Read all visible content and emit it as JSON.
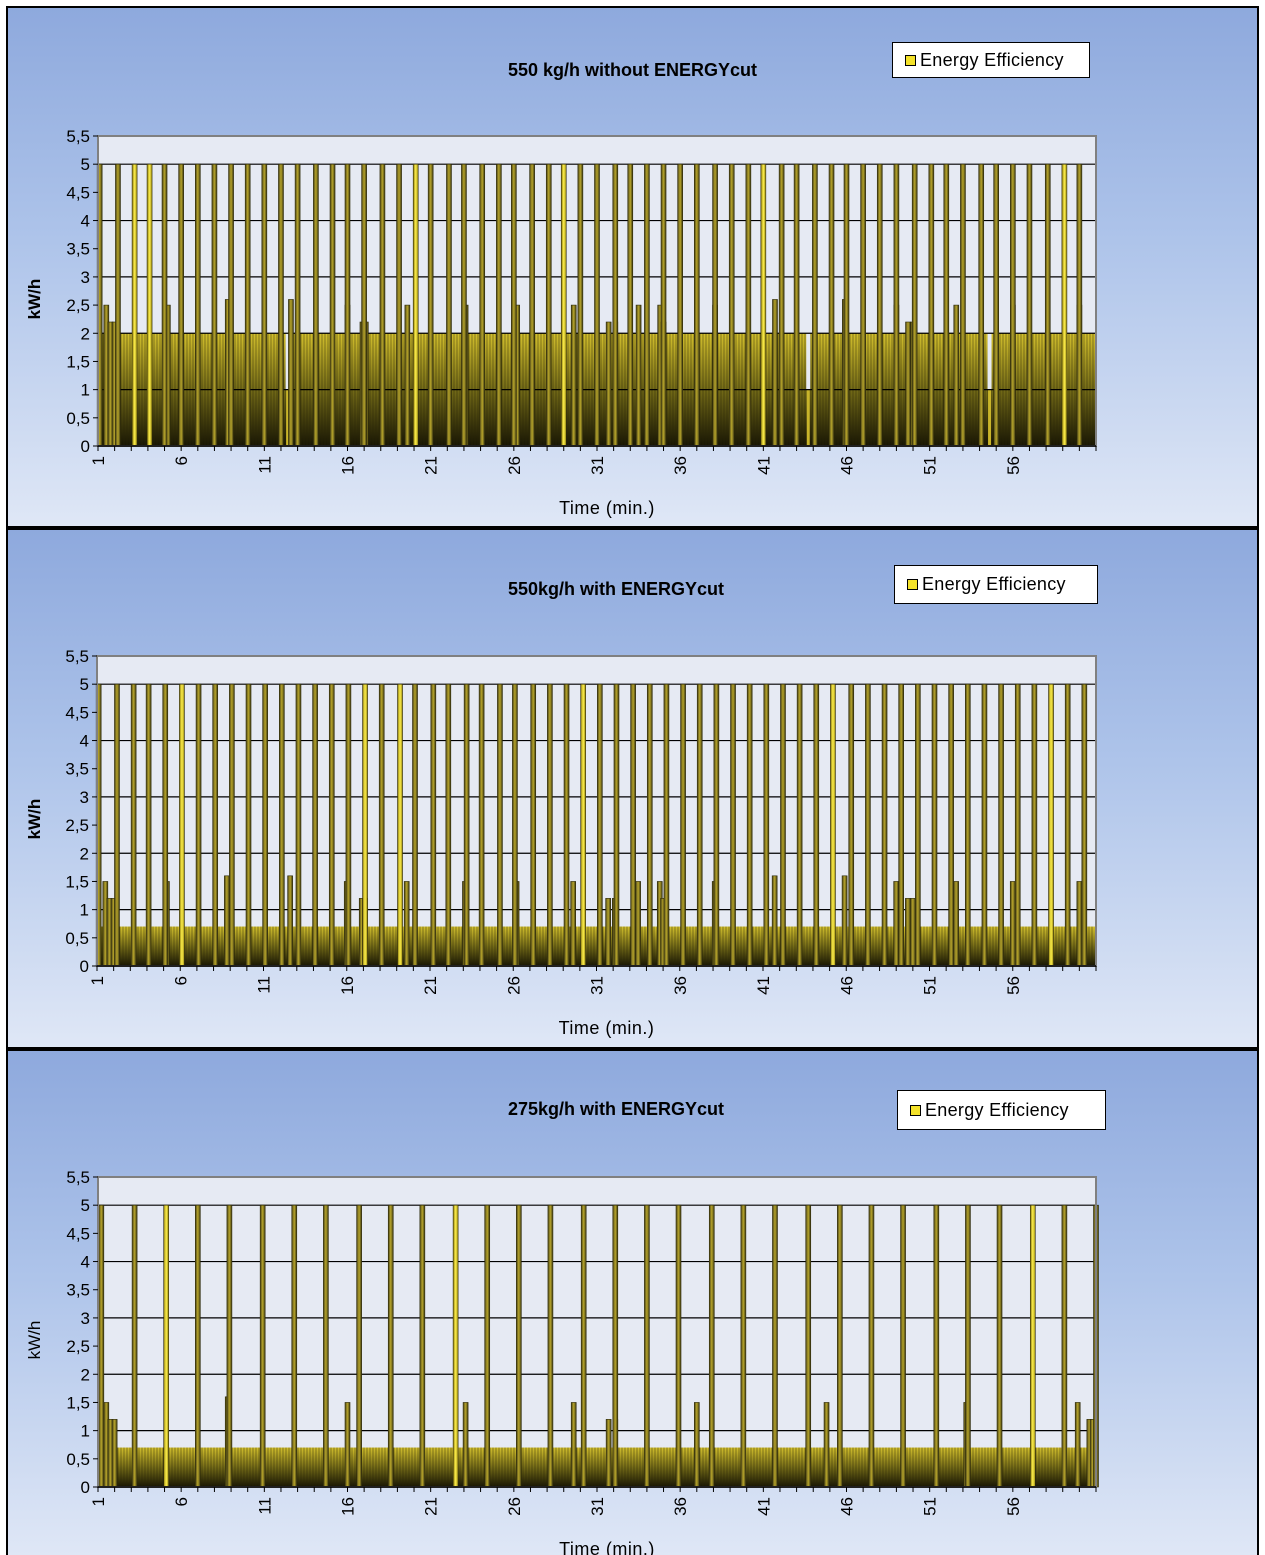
{
  "chart_data": [
    {
      "type": "bar",
      "title": "550 kg/h without ENERGYcut",
      "xlabel": "Time (min.)",
      "ylabel": "kW/h",
      "ylim": [
        0,
        5.5
      ],
      "yticks": [
        "0",
        "0,5",
        "1",
        "1,5",
        "2",
        "2,5",
        "3",
        "3,5",
        "4",
        "4,5",
        "5",
        "5,5"
      ],
      "xticks": [
        "1",
        "6",
        "11",
        "16",
        "21",
        "26",
        "31",
        "36",
        "41",
        "46",
        "51",
        "56"
      ],
      "x_range": [
        1,
        61
      ],
      "grid": "horizontal",
      "legend": {
        "label": "Energy Efficiency",
        "position": "top-right"
      },
      "series": [
        {
          "name": "Energy Efficiency",
          "color": "#e3cf1f"
        }
      ],
      "baseline": 2,
      "dips": [
        {
          "x": 12.4,
          "y": 1
        },
        {
          "x": 43.7,
          "y": 1
        },
        {
          "x": 54.6,
          "y": 1
        }
      ],
      "peaks": [
        1.1,
        2.2,
        3.2,
        4.1,
        5.0,
        6.0,
        7.0,
        8.0,
        9.0,
        10.0,
        11.0,
        12.0,
        13.0,
        14.1,
        15.1,
        16.0,
        17.0,
        18.1,
        19.1,
        20.1,
        21.0,
        22.1,
        23.0,
        24.1,
        25.1,
        26.0,
        27.1,
        28.1,
        29.0,
        30.0,
        31.0,
        32.1,
        33.0,
        34.0,
        35.0,
        36.0,
        37.0,
        38.1,
        39.1,
        40.1,
        41.0,
        42.1,
        43.0,
        44.1,
        45.1,
        46.0,
        47.0,
        48.0,
        49.0,
        50.1,
        51.1,
        52.0,
        53.0,
        54.1,
        55.0,
        56.0,
        57.0,
        58.1,
        59.1,
        60.0
      ],
      "mids": [
        {
          "x": 1.5,
          "y": 2.5
        },
        {
          "x": 1.75,
          "y": 2.2
        },
        {
          "x": 2.0,
          "y": 2.2
        },
        {
          "x": 5.2,
          "y": 2.5
        },
        {
          "x": 8.8,
          "y": 2.6
        },
        {
          "x": 12.6,
          "y": 2.6
        },
        {
          "x": 16.0,
          "y": 2.5
        },
        {
          "x": 16.9,
          "y": 2.2
        },
        {
          "x": 17.1,
          "y": 2.2
        },
        {
          "x": 19.6,
          "y": 2.5
        },
        {
          "x": 23.1,
          "y": 2.5
        },
        {
          "x": 26.2,
          "y": 2.5
        },
        {
          "x": 29.6,
          "y": 2.5
        },
        {
          "x": 31.7,
          "y": 2.2
        },
        {
          "x": 32.1,
          "y": 2.2
        },
        {
          "x": 33.5,
          "y": 2.5
        },
        {
          "x": 34.8,
          "y": 2.5
        },
        {
          "x": 35.0,
          "y": 2.2
        },
        {
          "x": 38.1,
          "y": 2.5
        },
        {
          "x": 41.7,
          "y": 2.6
        },
        {
          "x": 45.9,
          "y": 2.6
        },
        {
          "x": 49.0,
          "y": 2.5
        },
        {
          "x": 49.7,
          "y": 2.2
        },
        {
          "x": 50.0,
          "y": 2.2
        },
        {
          "x": 52.6,
          "y": 2.5
        },
        {
          "x": 56.0,
          "y": 2.5
        },
        {
          "x": 60.0,
          "y": 2.5
        }
      ],
      "highlights": [
        3.2,
        4.1,
        20.1,
        29.0,
        41.0,
        59.1
      ]
    },
    {
      "type": "bar",
      "title": "550kg/h with ENERGYcut",
      "xlabel": "Time (min.)",
      "ylabel": "kW/h",
      "ylim": [
        0,
        5.5
      ],
      "yticks": [
        "0",
        "0,5",
        "1",
        "1,5",
        "2",
        "2,5",
        "3",
        "3,5",
        "4",
        "4,5",
        "5",
        "5,5"
      ],
      "xticks": [
        "1",
        "6",
        "11",
        "16",
        "21",
        "26",
        "31",
        "36",
        "41",
        "46",
        "51",
        "56"
      ],
      "x_range": [
        1,
        61
      ],
      "grid": "horizontal",
      "legend": {
        "label": "Energy Efficiency",
        "position": "top-right"
      },
      "series": [
        {
          "name": "Energy Efficiency",
          "color": "#e3cf1f"
        }
      ],
      "baseline": 0.7,
      "dips": [],
      "peaks": [
        1.1,
        2.2,
        3.2,
        4.1,
        5.1,
        6.1,
        7.1,
        8.1,
        9.1,
        10.1,
        11.1,
        12.1,
        13.1,
        14.1,
        15.1,
        16.1,
        17.1,
        18.1,
        19.2,
        20.1,
        21.2,
        22.1,
        23.2,
        24.1,
        25.2,
        26.1,
        27.2,
        28.2,
        29.2,
        30.2,
        31.2,
        32.2,
        33.2,
        34.2,
        35.2,
        36.2,
        37.2,
        38.2,
        39.2,
        40.2,
        41.2,
        42.2,
        43.2,
        44.2,
        45.2,
        46.3,
        47.3,
        48.3,
        49.3,
        50.3,
        51.3,
        52.3,
        53.3,
        54.3,
        55.3,
        56.3,
        57.3,
        58.3,
        59.3,
        60.3
      ],
      "mids": [
        {
          "x": 1.5,
          "y": 1.5
        },
        {
          "x": 1.75,
          "y": 1.2
        },
        {
          "x": 2.0,
          "y": 1.2
        },
        {
          "x": 5.2,
          "y": 1.5
        },
        {
          "x": 8.8,
          "y": 1.6
        },
        {
          "x": 12.6,
          "y": 1.6
        },
        {
          "x": 16.0,
          "y": 1.5
        },
        {
          "x": 16.9,
          "y": 1.2
        },
        {
          "x": 17.1,
          "y": 1.2
        },
        {
          "x": 19.6,
          "y": 1.5
        },
        {
          "x": 23.1,
          "y": 1.5
        },
        {
          "x": 26.2,
          "y": 1.5
        },
        {
          "x": 29.6,
          "y": 1.5
        },
        {
          "x": 31.7,
          "y": 1.2
        },
        {
          "x": 32.1,
          "y": 1.2
        },
        {
          "x": 33.5,
          "y": 1.5
        },
        {
          "x": 34.8,
          "y": 1.5
        },
        {
          "x": 35.0,
          "y": 1.2
        },
        {
          "x": 38.1,
          "y": 1.5
        },
        {
          "x": 41.7,
          "y": 1.6
        },
        {
          "x": 45.9,
          "y": 1.6
        },
        {
          "x": 49.0,
          "y": 1.5
        },
        {
          "x": 49.7,
          "y": 1.2
        },
        {
          "x": 50.0,
          "y": 1.2
        },
        {
          "x": 52.6,
          "y": 1.5
        },
        {
          "x": 56.0,
          "y": 1.5
        },
        {
          "x": 60.0,
          "y": 1.5
        }
      ],
      "highlights": [
        6.1,
        17.1,
        19.2,
        30.2,
        45.2,
        58.3
      ]
    },
    {
      "type": "bar",
      "title": "275kg/h with ENERGYcut",
      "xlabel": "Time (min.)",
      "ylabel": "kW/h",
      "ylim": [
        0,
        5.5
      ],
      "yticks": [
        "0",
        "0,5",
        "1",
        "1,5",
        "2",
        "2,5",
        "3",
        "3,5",
        "4",
        "4,5",
        "5",
        "5,5"
      ],
      "xticks": [
        "1",
        "6",
        "11",
        "16",
        "21",
        "26",
        "31",
        "36",
        "41",
        "46",
        "51",
        "56"
      ],
      "x_range": [
        1,
        61
      ],
      "grid": "horizontal",
      "legend": {
        "label": "Energy Efficiency",
        "position": "top-right"
      },
      "series": [
        {
          "name": "Energy Efficiency",
          "color": "#e3cf1f"
        }
      ],
      "baseline": 0.7,
      "dips": [],
      "peaks": [
        1.2,
        3.2,
        5.1,
        7.0,
        8.9,
        10.9,
        12.8,
        14.7,
        16.7,
        18.6,
        20.5,
        22.5,
        24.4,
        26.3,
        28.2,
        30.2,
        32.1,
        34.0,
        35.9,
        37.9,
        39.8,
        41.7,
        43.7,
        45.6,
        47.5,
        49.4,
        51.4,
        53.3,
        55.2,
        57.2,
        59.1,
        61.0
      ],
      "mids": [
        {
          "x": 1.5,
          "y": 1.5
        },
        {
          "x": 1.75,
          "y": 1.2
        },
        {
          "x": 2.0,
          "y": 1.2
        },
        {
          "x": 8.8,
          "y": 1.6
        },
        {
          "x": 16.0,
          "y": 1.5
        },
        {
          "x": 23.1,
          "y": 1.5
        },
        {
          "x": 29.6,
          "y": 1.5
        },
        {
          "x": 31.7,
          "y": 1.2
        },
        {
          "x": 32.1,
          "y": 1.2
        },
        {
          "x": 37.0,
          "y": 1.5
        },
        {
          "x": 44.8,
          "y": 1.5
        },
        {
          "x": 53.2,
          "y": 1.5
        },
        {
          "x": 59.9,
          "y": 1.5
        },
        {
          "x": 60.6,
          "y": 1.2
        },
        {
          "x": 60.8,
          "y": 1.2
        }
      ],
      "highlights": [
        5.1,
        22.5,
        57.2
      ]
    }
  ]
}
